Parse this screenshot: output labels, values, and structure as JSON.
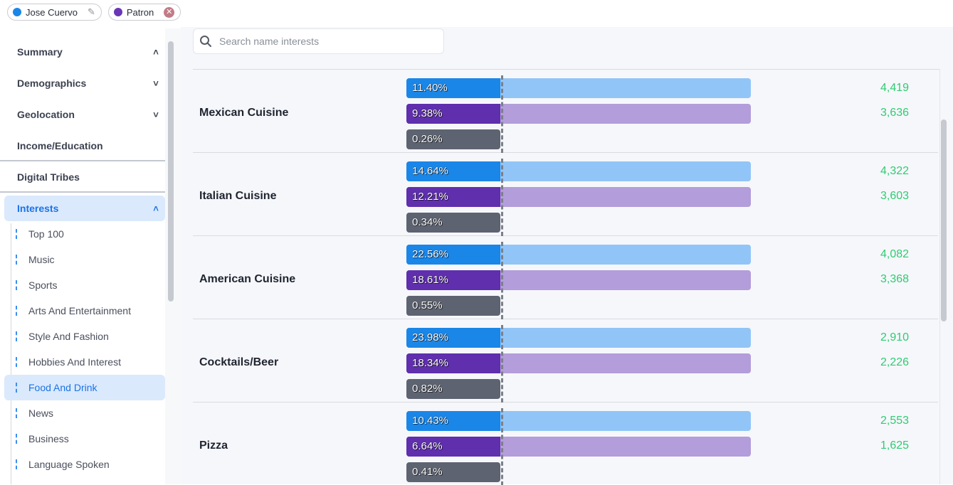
{
  "chips": [
    {
      "label": "Jose Cuervo",
      "color": "#1a86e8",
      "icon": "pencil-icon"
    },
    {
      "label": "Patron",
      "color": "#6a36b6",
      "icon": "close-icon"
    }
  ],
  "sidebar": {
    "sections": [
      {
        "label": "Summary",
        "chevron": "chevron-up-icon"
      },
      {
        "label": "Demographics",
        "chevron": "chevron-down-icon"
      },
      {
        "label": "Geolocation",
        "chevron": "chevron-down-icon"
      },
      {
        "label": "Income/Education"
      },
      {
        "label": "Digital Tribes"
      },
      {
        "label": "Interests",
        "chevron": "chevron-up-icon",
        "active": true
      }
    ],
    "sub_items": [
      {
        "label": "Top 100"
      },
      {
        "label": "Music"
      },
      {
        "label": "Sports"
      },
      {
        "label": "Arts And Entertainment"
      },
      {
        "label": "Style And Fashion"
      },
      {
        "label": "Hobbies And Interest"
      },
      {
        "label": "Food And Drink",
        "active": true
      },
      {
        "label": "News"
      },
      {
        "label": "Business"
      },
      {
        "label": "Language Spoken"
      }
    ]
  },
  "search": {
    "placeholder": "Search name interests",
    "value": ""
  },
  "colors": {
    "brand1": "#1a86e8",
    "brand1_light": "#92c5f7",
    "brand2": "#5f2fae",
    "brand2_light": "#b39dda",
    "overlap": "#5d6371",
    "count": "#2ecc71"
  },
  "rows": [
    {
      "name": "Mexican Cuisine",
      "p1": "11.40%",
      "p2": "9.38%",
      "p3": "0.26%",
      "c1": "4,419",
      "c2": "3,636"
    },
    {
      "name": "Italian Cuisine",
      "p1": "14.64%",
      "p2": "12.21%",
      "p3": "0.34%",
      "c1": "4,322",
      "c2": "3,603"
    },
    {
      "name": "American Cuisine",
      "p1": "22.56%",
      "p2": "18.61%",
      "p3": "0.55%",
      "c1": "4,082",
      "c2": "3,368"
    },
    {
      "name": "Cocktails/Beer",
      "p1": "23.98%",
      "p2": "18.34%",
      "p3": "0.82%",
      "c1": "2,910",
      "c2": "2,226"
    },
    {
      "name": "Pizza",
      "p1": "10.43%",
      "p2": "6.64%",
      "p3": "0.41%",
      "c1": "2,553",
      "c2": "1,625"
    }
  ]
}
